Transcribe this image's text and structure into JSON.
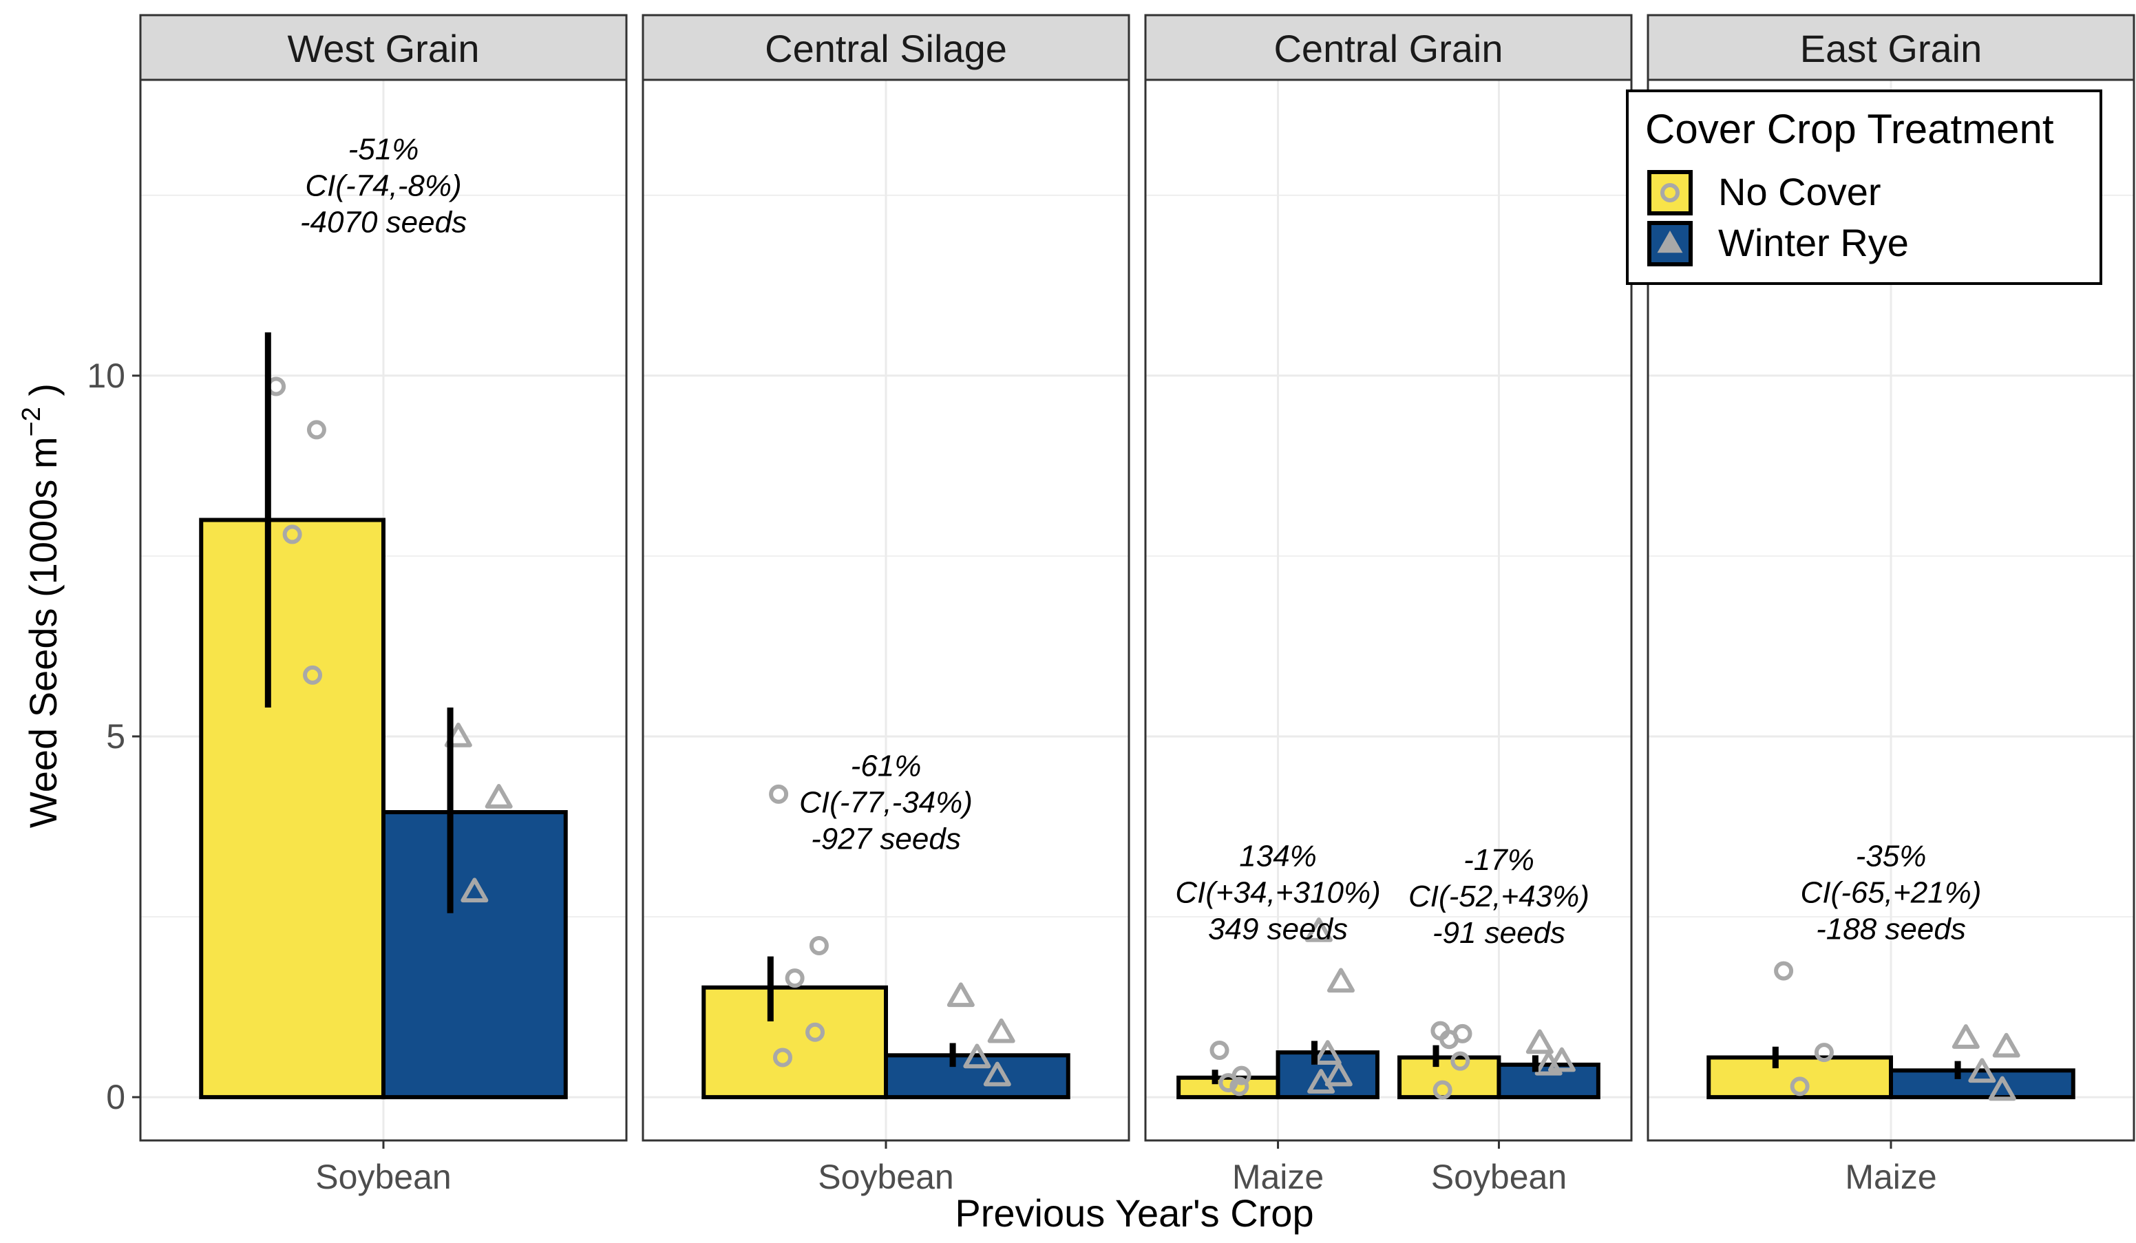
{
  "chart_data": {
    "type": "bar",
    "ylabel": "Weed Seeds (1000s m",
    "ylabel_sup": "−2",
    "ylabel_close": ")",
    "xlabel": "Previous Year's Crop",
    "ylim": [
      -0.6,
      14.1
    ],
    "yticks": [
      0,
      5,
      10
    ],
    "grid": true,
    "legend": {
      "title": "Cover Crop Treatment",
      "position": "top-right",
      "entries": [
        {
          "label": "No Cover",
          "color": "#f8e44a",
          "shape": "circle"
        },
        {
          "label": "Winter Rye",
          "color": "#134d8b",
          "shape": "triangle"
        }
      ]
    },
    "panels": [
      {
        "title": "West Grain",
        "categories": [
          "Soybean"
        ],
        "groups": [
          {
            "category": "Soybean",
            "bars": [
              {
                "series": "No Cover",
                "value": 8.0,
                "err": [
                  5.4,
                  10.6
                ],
                "points": [
                  9.85,
                  9.25,
                  7.8,
                  5.85
                ]
              },
              {
                "series": "Winter Rye",
                "value": 3.95,
                "err": [
                  2.55,
                  5.4
                ],
                "points": [
                  5.0,
                  4.15,
                  2.85
                ]
              }
            ],
            "annotation": [
              "-51%",
              "CI(-74,-8%)",
              "-4070 seeds"
            ],
            "annotation_y": 13.0
          }
        ]
      },
      {
        "title": "Central Silage",
        "categories": [
          "Soybean"
        ],
        "groups": [
          {
            "category": "Soybean",
            "bars": [
              {
                "series": "No Cover",
                "value": 1.52,
                "err": [
                  1.05,
                  1.95
                ],
                "points": [
                  4.2,
                  2.1,
                  1.65,
                  0.9,
                  0.55
                ]
              },
              {
                "series": "Winter Rye",
                "value": 0.58,
                "err": [
                  0.42,
                  0.75
                ],
                "points": [
                  1.4,
                  0.9,
                  0.55,
                  0.3
                ]
              }
            ],
            "annotation": [
              "-61%",
              "CI(-77,-34%)",
              "-927 seeds"
            ],
            "annotation_y": 4.45
          }
        ]
      },
      {
        "title": "Central Grain",
        "categories": [
          "Maize",
          "Soybean"
        ],
        "groups": [
          {
            "category": "Maize",
            "bars": [
              {
                "series": "No Cover",
                "value": 0.27,
                "err": [
                  0.18,
                  0.38
                ],
                "points": [
                  0.65,
                  0.3,
                  0.2,
                  0.15
                ]
              },
              {
                "series": "Winter Rye",
                "value": 0.62,
                "err": [
                  0.45,
                  0.78
                ],
                "points": [
                  2.3,
                  1.6,
                  0.6,
                  0.3,
                  0.2
                ]
              }
            ],
            "annotation": [
              "134%",
              "CI(+34,+310%)",
              "349 seeds"
            ],
            "annotation_y": 3.2
          },
          {
            "category": "Soybean",
            "bars": [
              {
                "series": "No Cover",
                "value": 0.55,
                "err": [
                  0.42,
                  0.72
                ],
                "points": [
                  0.92,
                  0.88,
                  0.8,
                  0.5,
                  0.1
                ]
              },
              {
                "series": "Winter Rye",
                "value": 0.45,
                "err": [
                  0.35,
                  0.58
                ],
                "points": [
                  0.75,
                  0.5,
                  0.45
                ]
              }
            ],
            "annotation": [
              "-17%",
              "CI(-52,+43%)",
              "-91 seeds"
            ],
            "annotation_y": 3.15
          }
        ]
      },
      {
        "title": "East Grain",
        "categories": [
          "Maize"
        ],
        "groups": [
          {
            "category": "Maize",
            "bars": [
              {
                "series": "No Cover",
                "value": 0.55,
                "err": [
                  0.4,
                  0.7
                ],
                "points": [
                  1.75,
                  0.62,
                  0.15
                ]
              },
              {
                "series": "Winter Rye",
                "value": 0.37,
                "err": [
                  0.25,
                  0.5
                ],
                "points": [
                  0.82,
                  0.7,
                  0.35,
                  0.1
                ]
              }
            ],
            "annotation": [
              "-35%",
              "CI(-65,+21%)",
              "-188 seeds"
            ],
            "annotation_y": 3.2
          }
        ]
      }
    ]
  }
}
